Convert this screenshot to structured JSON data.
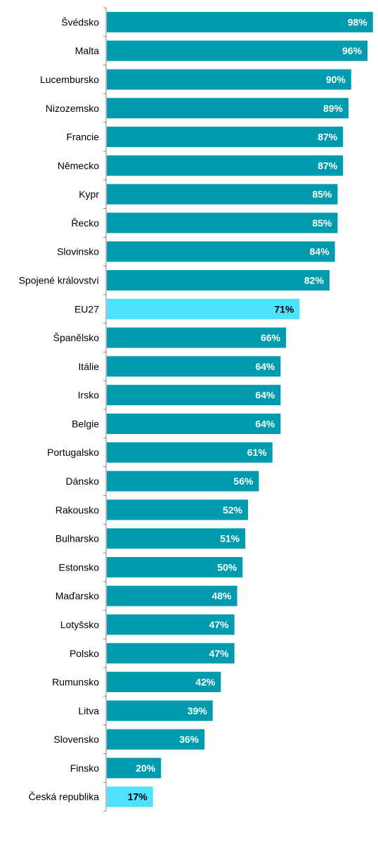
{
  "chart_data": {
    "type": "bar",
    "orientation": "horizontal",
    "categories": [
      "Švédsko",
      "Malta",
      "Lucembursko",
      "Nizozemsko",
      "Francie",
      "Německo",
      "Kypr",
      "Řecko",
      "Slovinsko",
      "Spojené království",
      "EU27",
      "Španělsko",
      "Itálie",
      "Irsko",
      "Belgie",
      "Portugalsko",
      "Dánsko",
      "Rakousko",
      "Bulharsko",
      "Estonsko",
      "Maďarsko",
      "Lotyšsko",
      "Polsko",
      "Rumunsko",
      "Litva",
      "Slovensko",
      "Finsko",
      "Česká republika"
    ],
    "values": [
      98,
      96,
      90,
      89,
      87,
      87,
      85,
      85,
      84,
      82,
      71,
      66,
      64,
      64,
      64,
      61,
      56,
      52,
      51,
      50,
      48,
      47,
      47,
      42,
      39,
      36,
      20,
      17
    ],
    "data_labels": [
      "98%",
      "96%",
      "90%",
      "89%",
      "87%",
      "87%",
      "85%",
      "85%",
      "84%",
      "82%",
      "71%",
      "66%",
      "64%",
      "64%",
      "64%",
      "61%",
      "56%",
      "52%",
      "51%",
      "50%",
      "48%",
      "47%",
      "47%",
      "42%",
      "39%",
      "36%",
      "20%",
      "17%"
    ],
    "highlighted": [
      "EU27",
      "Česká republika"
    ],
    "xlim": [
      0,
      100
    ],
    "title": "",
    "xlabel": "",
    "ylabel": "",
    "grid": false,
    "colors": {
      "bar": "#009BAF",
      "highlight": "#4DE3FF",
      "label_on_bar": "#FFFFFF",
      "label_on_highlight": "#000000",
      "axis": "#808080",
      "category_text": "#000000"
    }
  }
}
